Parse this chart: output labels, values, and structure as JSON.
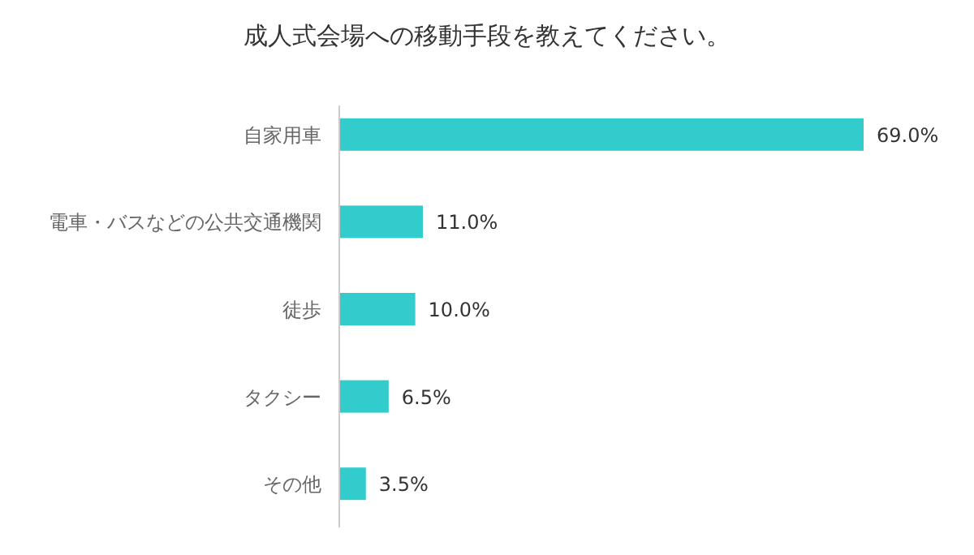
{
  "chart_data": {
    "type": "bar",
    "orientation": "horizontal",
    "title": "成人式会場への移動手段を教えてください。",
    "categories": [
      "自家用車",
      "電車・バスなどの公共交通機関",
      "徒歩",
      "タクシー",
      "その他"
    ],
    "values": [
      69.0,
      11.0,
      10.0,
      6.5,
      3.5
    ],
    "value_labels": [
      "69.0%",
      "11.0%",
      "10.0%",
      "6.5%",
      "3.5%"
    ],
    "color": "#33cccc"
  }
}
